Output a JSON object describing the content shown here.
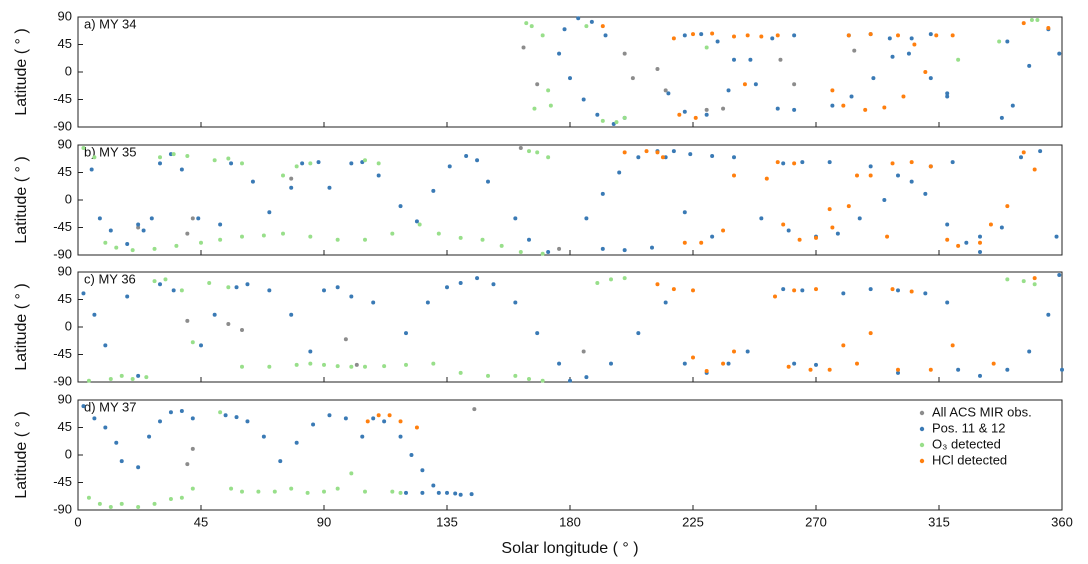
{
  "chart_data": [
    {
      "type": "scatter",
      "label": "a)  MY 34",
      "ylabel": "Latitude ( ° )",
      "xlim": [
        0,
        360
      ],
      "ylim": [
        -90,
        90
      ],
      "yticks": [
        -90,
        -45,
        0,
        45,
        90
      ],
      "xticks": [
        0,
        45,
        90,
        135,
        180,
        225,
        270,
        315,
        360
      ],
      "series": [
        {
          "color": "#8c8c8c",
          "x": [
            163,
            168,
            200,
            203,
            212,
            215,
            230,
            236,
            257,
            262,
            284
          ],
          "y": [
            40,
            -20,
            30,
            -10,
            5,
            -30,
            -62,
            -60,
            20,
            -20,
            35
          ]
        },
        {
          "color": "#3a7ab5",
          "x": [
            176,
            180,
            185,
            190,
            196,
            200,
            178,
            183,
            188,
            193,
            216,
            222,
            230,
            238,
            246,
            254,
            262,
            222,
            228,
            234,
            240,
            248,
            256,
            262,
            276,
            283,
            291,
            298,
            305,
            312,
            318,
            282,
            290,
            297,
            304,
            312,
            318,
            338,
            342,
            348,
            355,
            359,
            340
          ],
          "y": [
            30,
            -10,
            -45,
            -70,
            -85,
            -75,
            70,
            88,
            82,
            60,
            -35,
            -65,
            -70,
            -30,
            20,
            55,
            60,
            60,
            62,
            50,
            20,
            -20,
            -60,
            -62,
            -55,
            -40,
            -10,
            25,
            55,
            62,
            -40,
            60,
            62,
            55,
            30,
            -10,
            -35,
            -75,
            -55,
            10,
            70,
            30,
            50
          ]
        },
        {
          "color": "#98df8a",
          "x": [
            164,
            166,
            170,
            172,
            173,
            167,
            192,
            197,
            200,
            186,
            230,
            322,
            337,
            349,
            351
          ],
          "y": [
            80,
            75,
            60,
            -30,
            -55,
            -60,
            -80,
            -82,
            -75,
            75,
            40,
            20,
            50,
            85,
            85
          ]
        },
        {
          "color": "#ff7f0e",
          "x": [
            218,
            225,
            232,
            240,
            245,
            250,
            256,
            220,
            226,
            276,
            280,
            288,
            295,
            302,
            310,
            320,
            282,
            290,
            300,
            306,
            314,
            192,
            244,
            346,
            355
          ],
          "y": [
            55,
            62,
            63,
            58,
            60,
            58,
            60,
            -70,
            -75,
            -30,
            -55,
            -62,
            -58,
            -40,
            0,
            60,
            60,
            62,
            60,
            45,
            60,
            75,
            -20,
            80,
            72
          ]
        }
      ]
    },
    {
      "type": "scatter",
      "label": "b)  MY 35",
      "ylabel": "Latitude ( ° )",
      "xlim": [
        0,
        360
      ],
      "ylim": [
        -90,
        90
      ],
      "yticks": [
        -90,
        -45,
        0,
        45,
        90
      ],
      "xticks": [
        0,
        45,
        90,
        135,
        180,
        225,
        270,
        315,
        360
      ],
      "series": [
        {
          "color": "#8c8c8c",
          "x": [
            22,
            40,
            42,
            78,
            162,
            176
          ],
          "y": [
            -45,
            -55,
            -30,
            35,
            85,
            -80
          ]
        },
        {
          "color": "#3a7ab5",
          "x": [
            5,
            8,
            12,
            18,
            22,
            24,
            27,
            30,
            34,
            38,
            44,
            52,
            56,
            64,
            70,
            78,
            82,
            88,
            92,
            100,
            104,
            110,
            118,
            124,
            130,
            136,
            142,
            146,
            150,
            160,
            165,
            172,
            186,
            192,
            198,
            205,
            212,
            218,
            224,
            232,
            240,
            192,
            200,
            210,
            215,
            222,
            232,
            250,
            260,
            270,
            278,
            286,
            295,
            305,
            312,
            320,
            258,
            265,
            275,
            290,
            300,
            310,
            318,
            325,
            330,
            338,
            345,
            352,
            358,
            330
          ],
          "y": [
            50,
            -30,
            -50,
            -72,
            -40,
            -50,
            -30,
            60,
            75,
            50,
            -30,
            -40,
            60,
            30,
            -20,
            20,
            60,
            62,
            20,
            60,
            62,
            40,
            -10,
            -35,
            15,
            55,
            72,
            65,
            30,
            -30,
            -65,
            -85,
            -30,
            10,
            45,
            70,
            80,
            80,
            75,
            72,
            70,
            -80,
            -82,
            -78,
            70,
            -20,
            -60,
            -30,
            -50,
            -60,
            -55,
            -30,
            0,
            30,
            55,
            62,
            60,
            62,
            62,
            55,
            40,
            10,
            -40,
            -70,
            -60,
            -45,
            70,
            80,
            -60,
            -85
          ]
        },
        {
          "color": "#98df8a",
          "x": [
            2,
            6,
            10,
            14,
            20,
            28,
            36,
            45,
            52,
            60,
            68,
            75,
            85,
            95,
            105,
            115,
            125,
            132,
            140,
            148,
            155,
            162,
            170,
            30,
            35,
            40,
            50,
            55,
            60,
            75,
            80,
            85,
            105,
            110,
            165,
            168,
            172
          ],
          "y": [
            85,
            70,
            -70,
            -78,
            -82,
            -80,
            -75,
            -70,
            -65,
            -60,
            -58,
            -55,
            -60,
            -65,
            -65,
            -55,
            -40,
            -55,
            -62,
            -65,
            -75,
            -85,
            -88,
            70,
            75,
            72,
            65,
            68,
            60,
            40,
            55,
            60,
            65,
            60,
            80,
            78,
            70
          ]
        },
        {
          "color": "#ff7f0e",
          "x": [
            200,
            208,
            214,
            222,
            228,
            236,
            240,
            252,
            258,
            264,
            270,
            276,
            282,
            290,
            298,
            305,
            312,
            256,
            262,
            275,
            285,
            296,
            318,
            322,
            330,
            334,
            340,
            346,
            350,
            212
          ],
          "y": [
            78,
            80,
            70,
            -70,
            -70,
            -50,
            40,
            35,
            -40,
            -65,
            -62,
            -45,
            -10,
            40,
            60,
            62,
            55,
            62,
            60,
            -15,
            40,
            -60,
            -65,
            -75,
            -70,
            -40,
            -10,
            78,
            50,
            78
          ]
        }
      ]
    },
    {
      "type": "scatter",
      "label": "c)  MY 36",
      "ylabel": "Latitude ( ° )",
      "xlim": [
        0,
        360
      ],
      "ylim": [
        -90,
        90
      ],
      "yticks": [
        -90,
        -45,
        0,
        45,
        90
      ],
      "xticks": [
        0,
        45,
        90,
        135,
        180,
        225,
        270,
        315,
        360
      ],
      "series": [
        {
          "color": "#8c8c8c",
          "x": [
            40,
            55,
            60,
            98,
            102,
            185
          ],
          "y": [
            10,
            5,
            -5,
            -20,
            -62,
            -40
          ]
        },
        {
          "color": "#3a7ab5",
          "x": [
            2,
            6,
            10,
            18,
            22,
            30,
            35,
            45,
            50,
            58,
            62,
            70,
            78,
            85,
            90,
            95,
            100,
            108,
            120,
            128,
            135,
            140,
            146,
            152,
            160,
            168,
            176,
            180,
            186,
            195,
            205,
            215,
            222,
            230,
            238,
            245,
            258,
            265,
            280,
            290,
            300,
            310,
            318,
            322,
            330,
            340,
            348,
            355,
            360,
            262,
            270,
            300,
            359
          ],
          "y": [
            55,
            20,
            -30,
            50,
            -80,
            70,
            60,
            -30,
            20,
            65,
            70,
            60,
            20,
            -40,
            60,
            65,
            50,
            40,
            -10,
            40,
            65,
            72,
            80,
            70,
            40,
            -10,
            -60,
            -88,
            -82,
            -60,
            -10,
            40,
            -60,
            -75,
            -60,
            -40,
            62,
            60,
            55,
            62,
            60,
            55,
            40,
            -70,
            -80,
            -70,
            -40,
            20,
            -70,
            -60,
            -62,
            -75,
            85
          ]
        },
        {
          "color": "#98df8a",
          "x": [
            4,
            12,
            16,
            20,
            25,
            28,
            32,
            38,
            42,
            48,
            55,
            60,
            70,
            80,
            85,
            90,
            95,
            100,
            105,
            112,
            120,
            130,
            140,
            150,
            160,
            165,
            170,
            190,
            195,
            200,
            340,
            346,
            350
          ],
          "y": [
            -88,
            -85,
            -80,
            -85,
            -82,
            75,
            78,
            60,
            -25,
            72,
            65,
            -65,
            -65,
            -62,
            -60,
            -62,
            -64,
            -65,
            -65,
            -64,
            -62,
            -60,
            -75,
            -80,
            -80,
            -85,
            -88,
            72,
            78,
            80,
            78,
            75,
            70
          ]
        },
        {
          "color": "#ff7f0e",
          "x": [
            212,
            218,
            225,
            230,
            236,
            240,
            255,
            262,
            270,
            280,
            290,
            298,
            305,
            312,
            260,
            268,
            275,
            285,
            300,
            320,
            335,
            350,
            225
          ],
          "y": [
            70,
            62,
            -50,
            -72,
            -60,
            -40,
            50,
            60,
            62,
            -30,
            -10,
            62,
            58,
            -70,
            -65,
            -70,
            -70,
            -60,
            -70,
            -30,
            -60,
            80,
            60
          ]
        }
      ]
    },
    {
      "type": "scatter",
      "label": "d)  MY 37",
      "ylabel": "Latitude ( ° )",
      "xlabel": "Solar longitude ( ° )",
      "xlim": [
        0,
        360
      ],
      "ylim": [
        -90,
        90
      ],
      "yticks": [
        -90,
        -45,
        0,
        45,
        90
      ],
      "xticks": [
        0,
        45,
        90,
        135,
        180,
        225,
        270,
        315,
        360
      ],
      "legend": "upper right",
      "series": [
        {
          "name": "All ACS MIR obs.",
          "color": "#8c8c8c",
          "x": [
            40,
            42,
            145
          ],
          "y": [
            -15,
            10,
            75
          ]
        },
        {
          "name": "Pos. 11 & 12",
          "color": "#3a7ab5",
          "x": [
            2,
            6,
            10,
            14,
            16,
            22,
            26,
            30,
            34,
            38,
            42,
            54,
            58,
            62,
            68,
            74,
            80,
            86,
            92,
            98,
            104,
            108,
            112,
            118,
            122,
            126,
            130,
            135,
            140,
            144,
            120,
            126,
            132,
            138
          ],
          "y": [
            80,
            60,
            45,
            20,
            -10,
            -20,
            30,
            55,
            70,
            72,
            60,
            65,
            62,
            55,
            30,
            -10,
            20,
            50,
            65,
            60,
            30,
            60,
            55,
            30,
            0,
            -25,
            -50,
            -62,
            -65,
            -64,
            -62,
            -62,
            -62,
            -63
          ]
        },
        {
          "name": "O₃ detected",
          "color": "#98df8a",
          "x": [
            4,
            8,
            12,
            16,
            22,
            28,
            34,
            38,
            42,
            52,
            56,
            60,
            66,
            72,
            78,
            84,
            90,
            95,
            100,
            105,
            115,
            118
          ],
          "y": [
            -70,
            -80,
            -85,
            -80,
            -85,
            -80,
            -72,
            -70,
            -55,
            70,
            -55,
            -60,
            -60,
            -60,
            -55,
            -62,
            -60,
            -55,
            -30,
            -60,
            -60,
            -62
          ]
        },
        {
          "name": "HCl detected",
          "color": "#ff7f0e",
          "x": [
            106,
            110,
            114,
            118,
            124
          ],
          "y": [
            55,
            65,
            65,
            55,
            45
          ]
        }
      ]
    }
  ]
}
